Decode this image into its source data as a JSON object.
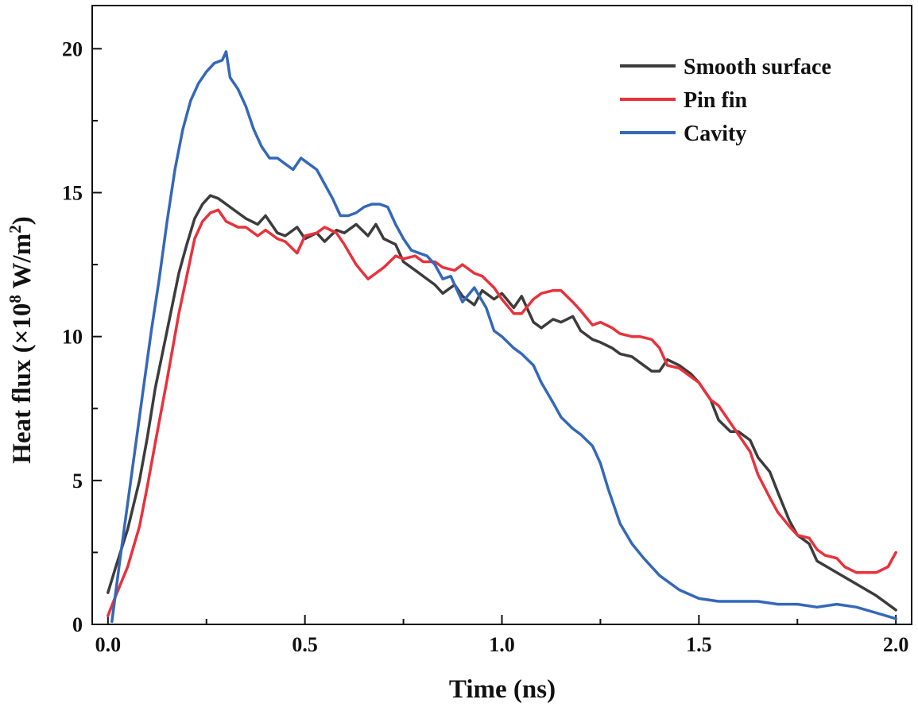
{
  "chart_data": {
    "type": "line",
    "title": "",
    "xlabel": "Time (ns)",
    "ylabel": {
      "prefix": "Heat flux (×10",
      "exp": "8",
      "mid": " W/m",
      "unit_exp": "2",
      "suffix": ")"
    },
    "xlim": [
      -0.04,
      2.04
    ],
    "ylim": [
      0,
      21.5
    ],
    "xticks": [
      0.0,
      0.5,
      1.0,
      1.5,
      2.0
    ],
    "xtick_labels": [
      "0.0",
      "0.5",
      "1.0",
      "1.5",
      "2.0"
    ],
    "yticks": [
      0,
      5,
      10,
      15,
      20
    ],
    "ytick_labels": [
      "0",
      "5",
      "10",
      "15",
      "20"
    ],
    "grid": false,
    "legend_position": "top-right",
    "series": [
      {
        "name": "Smooth surface",
        "color": "#3c3c3c",
        "x": [
          0.0,
          0.02,
          0.05,
          0.08,
          0.1,
          0.12,
          0.15,
          0.18,
          0.2,
          0.22,
          0.24,
          0.26,
          0.28,
          0.3,
          0.33,
          0.35,
          0.38,
          0.4,
          0.43,
          0.45,
          0.48,
          0.5,
          0.53,
          0.55,
          0.58,
          0.6,
          0.63,
          0.66,
          0.68,
          0.7,
          0.73,
          0.75,
          0.78,
          0.8,
          0.83,
          0.85,
          0.88,
          0.9,
          0.93,
          0.95,
          0.98,
          1.0,
          1.03,
          1.05,
          1.08,
          1.1,
          1.13,
          1.15,
          1.18,
          1.2,
          1.23,
          1.25,
          1.28,
          1.3,
          1.33,
          1.35,
          1.38,
          1.4,
          1.42,
          1.45,
          1.48,
          1.5,
          1.53,
          1.55,
          1.58,
          1.6,
          1.63,
          1.65,
          1.68,
          1.7,
          1.73,
          1.75,
          1.78,
          1.8,
          1.85,
          1.9,
          1.95,
          2.0
        ],
        "values": [
          1.1,
          2.0,
          3.3,
          5.0,
          6.5,
          8.2,
          10.2,
          12.2,
          13.2,
          14.1,
          14.6,
          14.9,
          14.8,
          14.6,
          14.3,
          14.1,
          13.9,
          14.2,
          13.6,
          13.5,
          13.8,
          13.4,
          13.6,
          13.3,
          13.7,
          13.6,
          13.9,
          13.5,
          13.9,
          13.4,
          13.2,
          12.6,
          12.3,
          12.1,
          11.8,
          11.5,
          11.8,
          11.4,
          11.1,
          11.6,
          11.3,
          11.5,
          11.0,
          11.4,
          10.5,
          10.3,
          10.6,
          10.5,
          10.7,
          10.2,
          9.9,
          9.8,
          9.6,
          9.4,
          9.3,
          9.1,
          8.8,
          8.8,
          9.2,
          9.0,
          8.7,
          8.4,
          7.8,
          7.1,
          6.7,
          6.7,
          6.4,
          5.8,
          5.3,
          4.6,
          3.6,
          3.1,
          2.8,
          2.2,
          1.8,
          1.4,
          1.0,
          0.5
        ]
      },
      {
        "name": "Pin fin",
        "color": "#e8323c",
        "x": [
          0.0,
          0.02,
          0.05,
          0.08,
          0.1,
          0.12,
          0.15,
          0.18,
          0.2,
          0.22,
          0.24,
          0.26,
          0.28,
          0.3,
          0.33,
          0.35,
          0.38,
          0.4,
          0.43,
          0.45,
          0.48,
          0.5,
          0.53,
          0.55,
          0.58,
          0.6,
          0.63,
          0.66,
          0.68,
          0.7,
          0.73,
          0.75,
          0.78,
          0.8,
          0.83,
          0.85,
          0.88,
          0.9,
          0.93,
          0.95,
          0.98,
          1.0,
          1.03,
          1.05,
          1.08,
          1.1,
          1.13,
          1.15,
          1.18,
          1.2,
          1.23,
          1.25,
          1.28,
          1.3,
          1.33,
          1.35,
          1.38,
          1.4,
          1.42,
          1.45,
          1.48,
          1.5,
          1.53,
          1.55,
          1.58,
          1.6,
          1.63,
          1.65,
          1.68,
          1.7,
          1.73,
          1.75,
          1.78,
          1.8,
          1.82,
          1.85,
          1.87,
          1.9,
          1.95,
          1.98,
          2.0
        ],
        "values": [
          0.3,
          1.0,
          2.0,
          3.4,
          4.8,
          6.3,
          8.5,
          10.8,
          12.1,
          13.4,
          14.0,
          14.3,
          14.4,
          14.0,
          13.8,
          13.8,
          13.5,
          13.7,
          13.4,
          13.3,
          12.9,
          13.5,
          13.6,
          13.8,
          13.6,
          13.2,
          12.5,
          12.0,
          12.2,
          12.4,
          12.8,
          12.7,
          12.8,
          12.6,
          12.6,
          12.4,
          12.3,
          12.5,
          12.2,
          12.1,
          11.7,
          11.3,
          10.8,
          10.8,
          11.3,
          11.5,
          11.6,
          11.6,
          11.2,
          10.9,
          10.4,
          10.5,
          10.3,
          10.1,
          10.0,
          10.0,
          9.9,
          9.6,
          9.0,
          8.9,
          8.6,
          8.4,
          7.8,
          7.6,
          7.0,
          6.6,
          6.0,
          5.2,
          4.4,
          3.9,
          3.4,
          3.1,
          3.0,
          2.6,
          2.4,
          2.3,
          2.0,
          1.8,
          1.8,
          2.0,
          2.5
        ]
      },
      {
        "name": "Cavity",
        "color": "#3468b8",
        "x": [
          0.01,
          0.03,
          0.05,
          0.07,
          0.09,
          0.11,
          0.13,
          0.15,
          0.17,
          0.19,
          0.21,
          0.23,
          0.25,
          0.27,
          0.29,
          0.3,
          0.31,
          0.33,
          0.35,
          0.37,
          0.39,
          0.41,
          0.43,
          0.45,
          0.47,
          0.49,
          0.51,
          0.53,
          0.55,
          0.57,
          0.59,
          0.61,
          0.63,
          0.65,
          0.67,
          0.69,
          0.71,
          0.73,
          0.75,
          0.77,
          0.79,
          0.81,
          0.83,
          0.85,
          0.87,
          0.9,
          0.93,
          0.96,
          0.98,
          1.0,
          1.03,
          1.05,
          1.08,
          1.1,
          1.13,
          1.15,
          1.18,
          1.2,
          1.23,
          1.25,
          1.27,
          1.3,
          1.33,
          1.36,
          1.4,
          1.45,
          1.5,
          1.55,
          1.6,
          1.65,
          1.7,
          1.75,
          1.8,
          1.85,
          1.9,
          1.95,
          2.0
        ],
        "values": [
          0.1,
          2.2,
          4.2,
          6.2,
          8.2,
          10.2,
          12.0,
          14.0,
          15.8,
          17.2,
          18.2,
          18.8,
          19.2,
          19.5,
          19.6,
          19.9,
          19.0,
          18.6,
          18.0,
          17.2,
          16.6,
          16.2,
          16.2,
          16.0,
          15.8,
          16.2,
          16.0,
          15.8,
          15.3,
          14.8,
          14.2,
          14.2,
          14.3,
          14.5,
          14.6,
          14.6,
          14.5,
          13.9,
          13.4,
          13.0,
          12.9,
          12.8,
          12.5,
          12.0,
          12.1,
          11.2,
          11.7,
          11.0,
          10.2,
          10.0,
          9.6,
          9.4,
          9.0,
          8.4,
          7.7,
          7.2,
          6.8,
          6.6,
          6.2,
          5.6,
          4.7,
          3.5,
          2.8,
          2.3,
          1.7,
          1.2,
          0.9,
          0.8,
          0.8,
          0.8,
          0.7,
          0.7,
          0.6,
          0.7,
          0.6,
          0.4,
          0.2
        ]
      }
    ]
  }
}
